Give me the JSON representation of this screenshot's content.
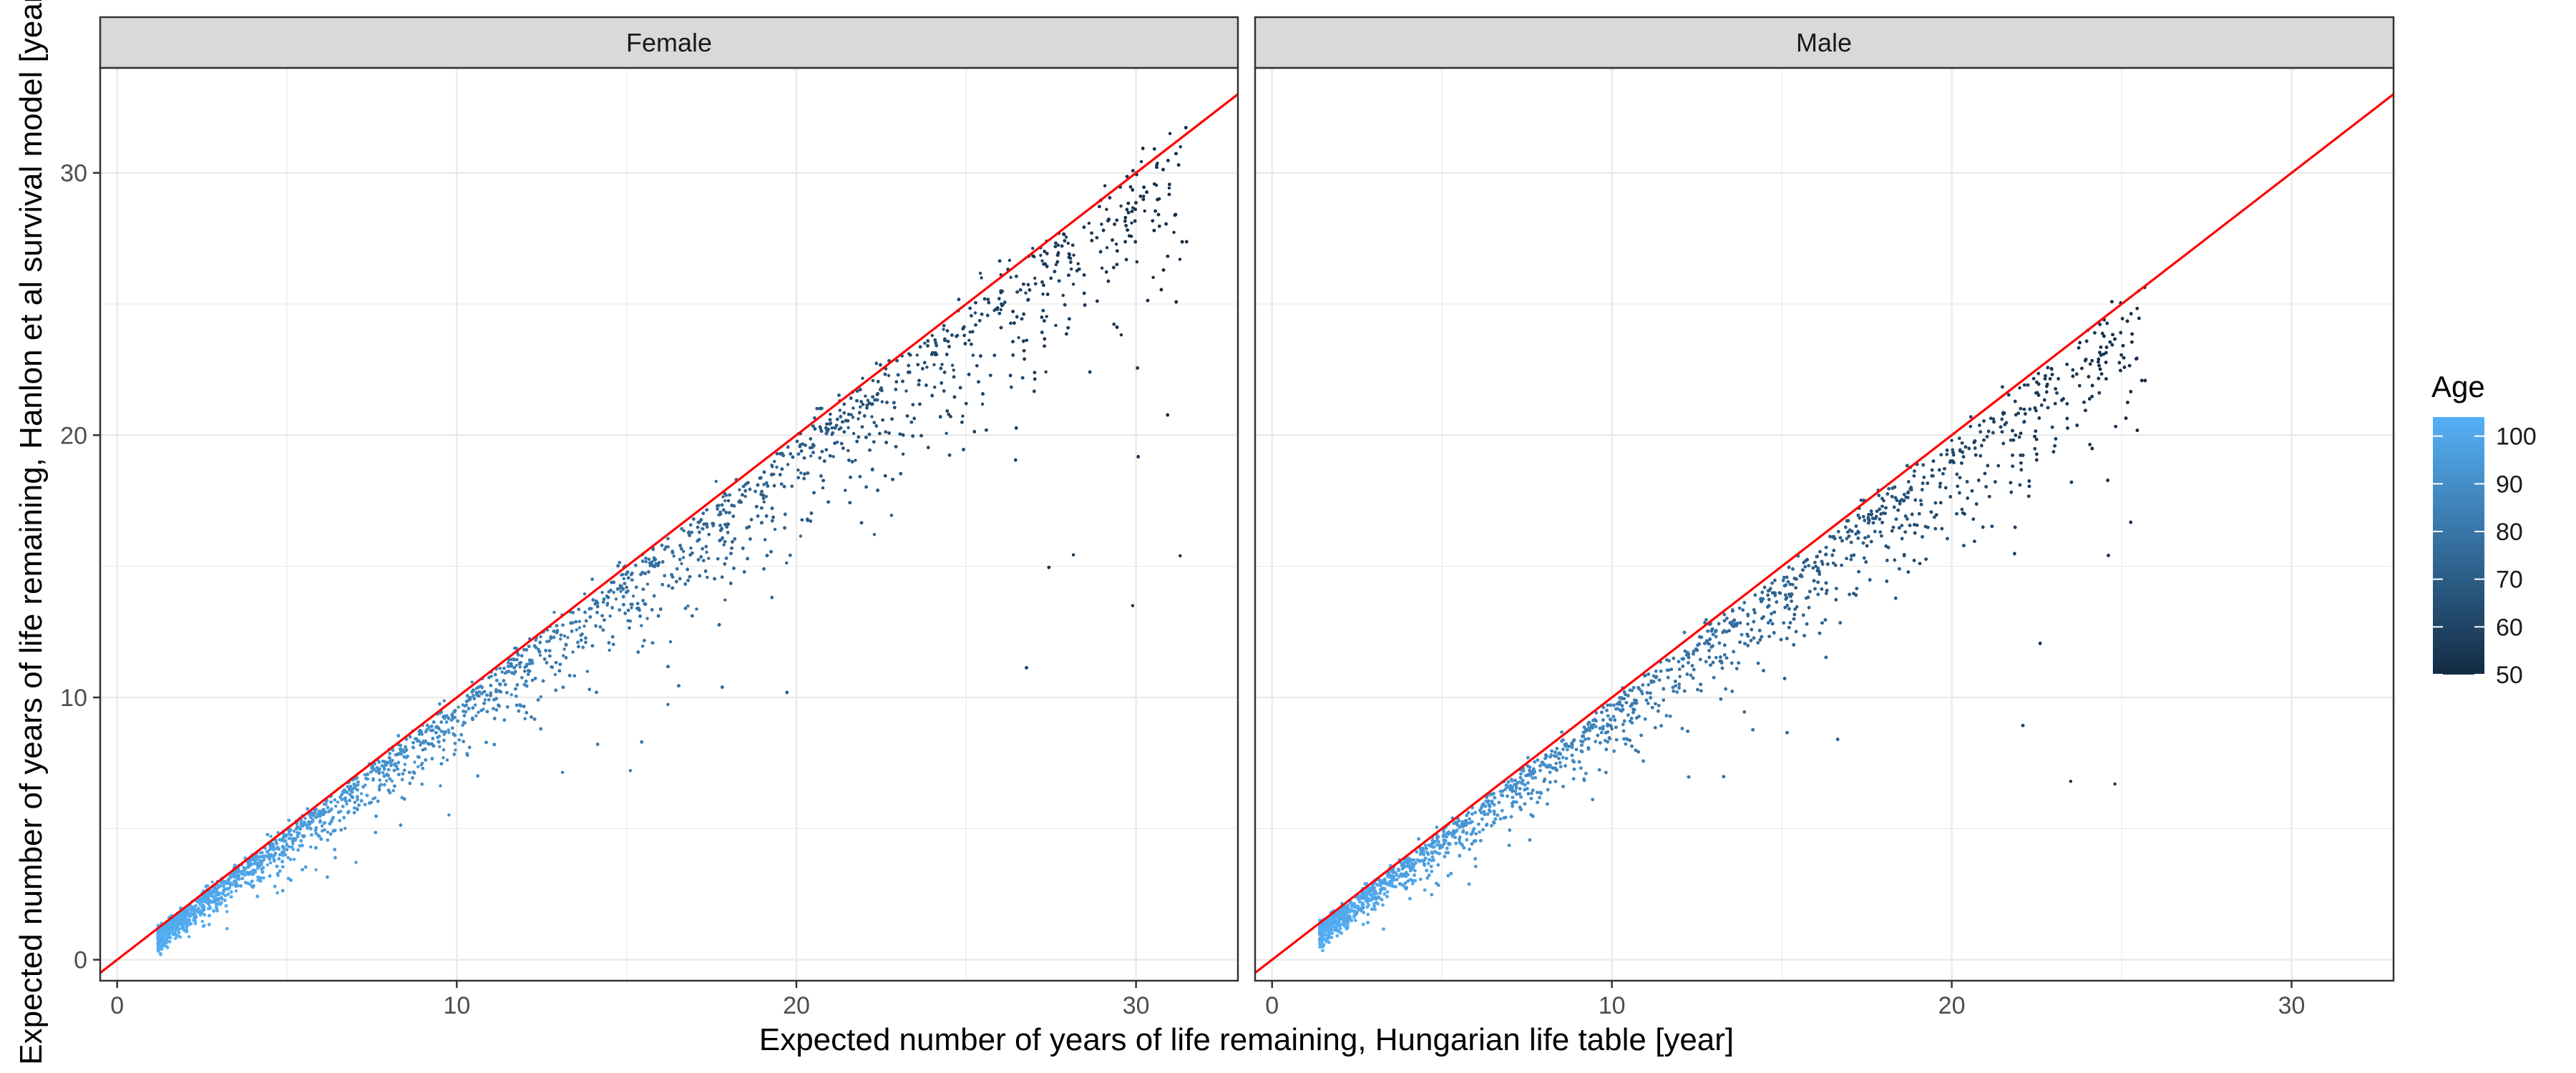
{
  "chart_data": {
    "type": "scatter",
    "xlabel": "Expected number of years of life remaining, Hungarian life table [year]",
    "ylabel": "Expected number of years of life remaining, Hanlon et al survival model [year]",
    "xlim": [
      -0.5,
      33.0
    ],
    "ylim": [
      -0.8,
      34.0
    ],
    "x_ticks": [
      0,
      10,
      20,
      30
    ],
    "y_ticks": [
      0,
      10,
      20,
      30
    ],
    "grid": true,
    "reference_line": {
      "slope": 1,
      "intercept": 0,
      "color": "#ff0000"
    },
    "panels": [
      {
        "label": "Female",
        "x_range": [
          1.2,
          31.5
        ],
        "y_range": [
          0.2,
          32.5
        ],
        "points_sample": [
          {
            "x": 1.5,
            "y": 1.2,
            "age": 100
          },
          {
            "x": 2.5,
            "y": 2.0,
            "age": 97
          },
          {
            "x": 3.5,
            "y": 2.8,
            "age": 94
          },
          {
            "x": 5.0,
            "y": 4.2,
            "age": 90
          },
          {
            "x": 7.0,
            "y": 6.0,
            "age": 85
          },
          {
            "x": 9.0,
            "y": 8.0,
            "age": 80
          },
          {
            "x": 12.0,
            "y": 11.0,
            "age": 75
          },
          {
            "x": 15.0,
            "y": 14.2,
            "age": 70
          },
          {
            "x": 18.0,
            "y": 17.5,
            "age": 65
          },
          {
            "x": 21.0,
            "y": 20.8,
            "age": 61
          },
          {
            "x": 24.0,
            "y": 23.8,
            "age": 57
          },
          {
            "x": 27.0,
            "y": 26.8,
            "age": 54
          },
          {
            "x": 30.0,
            "y": 30.0,
            "age": 51
          },
          {
            "x": 31.0,
            "y": 31.5,
            "age": 50
          },
          {
            "x": 29.9,
            "y": 13.5,
            "age": 51
          },
          {
            "x": 31.3,
            "y": 15.4,
            "age": 50
          }
        ]
      },
      {
        "label": "Male",
        "x_range": [
          1.4,
          25.7
        ],
        "y_range": [
          -0.3,
          26.0
        ],
        "points_sample": [
          {
            "x": 1.5,
            "y": 0.5,
            "age": 100
          },
          {
            "x": 2.5,
            "y": 1.8,
            "age": 96
          },
          {
            "x": 4.0,
            "y": 3.0,
            "age": 92
          },
          {
            "x": 6.0,
            "y": 4.8,
            "age": 86
          },
          {
            "x": 8.0,
            "y": 6.8,
            "age": 81
          },
          {
            "x": 10.0,
            "y": 8.8,
            "age": 76
          },
          {
            "x": 12.0,
            "y": 10.8,
            "age": 72
          },
          {
            "x": 14.0,
            "y": 12.8,
            "age": 68
          },
          {
            "x": 16.0,
            "y": 15.0,
            "age": 64
          },
          {
            "x": 18.0,
            "y": 17.5,
            "age": 60
          },
          {
            "x": 20.0,
            "y": 19.8,
            "age": 57
          },
          {
            "x": 22.0,
            "y": 21.8,
            "age": 54
          },
          {
            "x": 24.0,
            "y": 24.0,
            "age": 52
          },
          {
            "x": 25.5,
            "y": 25.5,
            "age": 50
          },
          {
            "x": 24.8,
            "y": 6.7,
            "age": 50
          },
          {
            "x": 23.5,
            "y": 6.8,
            "age": 51
          }
        ]
      }
    ],
    "legend": {
      "title": "Age",
      "position": "right",
      "ticks": [
        "100",
        "90",
        "80",
        "70",
        "60",
        "50"
      ],
      "range": [
        50,
        104
      ],
      "color_low": "#132b43",
      "color_high": "#56b1f7"
    }
  }
}
